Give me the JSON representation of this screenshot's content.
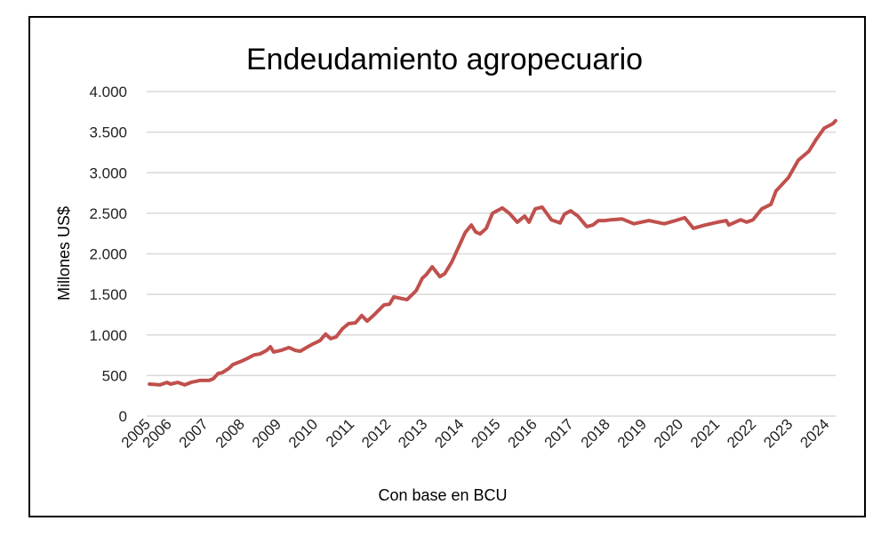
{
  "chart_data": {
    "type": "line",
    "title": "Endeudamiento agropecuario",
    "xlabel": "Con base en BCU",
    "ylabel": "Millones US$",
    "ylim": [
      0,
      4000
    ],
    "y_ticks": [
      0,
      500,
      1000,
      1500,
      2000,
      2500,
      3000,
      3500,
      4000
    ],
    "y_tick_labels": [
      "0",
      "500",
      "1.000",
      "1.500",
      "2.000",
      "2.500",
      "3.000",
      "3.500",
      "4.000"
    ],
    "x_tick_labels": [
      "2005",
      "2006",
      "2007",
      "2008",
      "2009",
      "2010",
      "2011",
      "2012",
      "2013",
      "2014",
      "2015",
      "2016",
      "2017",
      "2018",
      "2019",
      "2020",
      "2021",
      "2022",
      "2023",
      "2024"
    ],
    "grid": true,
    "legend": "none",
    "line_color": "#c0504d",
    "series": [
      {
        "x": [
          2005.42,
          2005.71,
          2005.9,
          2006.0,
          2006.2,
          2006.39,
          2006.56,
          2006.8,
          2007.05,
          2007.17,
          2007.3,
          2007.41,
          2007.6,
          2007.7,
          2007.9,
          2008.1,
          2008.29,
          2008.44,
          2008.63,
          2008.73,
          2008.82,
          2009.02,
          2009.24,
          2009.41,
          2009.55,
          2009.72,
          2009.9,
          2010.09,
          2010.24,
          2010.38,
          2010.53,
          2010.7,
          2010.87,
          2011.06,
          2011.23,
          2011.38,
          2011.55,
          2011.84,
          2011.99,
          2012.11,
          2012.47,
          2012.72,
          2012.89,
          2013.0,
          2013.16,
          2013.37,
          2013.5,
          2013.69,
          2013.86,
          2014.06,
          2014.23,
          2014.35,
          2014.47,
          2014.64,
          2014.81,
          2015.08,
          2015.27,
          2015.49,
          2015.69,
          2015.81,
          2015.98,
          2016.17,
          2016.42,
          2016.66,
          2016.78,
          2016.95,
          2017.15,
          2017.39,
          2017.56,
          2017.71,
          2017.88,
          2018.05,
          2018.36,
          2018.68,
          2019.09,
          2019.51,
          2019.82,
          2020.07,
          2020.31,
          2020.63,
          2020.97,
          2021.21,
          2021.28,
          2021.6,
          2021.77,
          2021.94,
          2022.18,
          2022.43,
          2022.57,
          2022.91,
          2023.18,
          2023.47,
          2023.67,
          2023.89,
          2024.13,
          2024.2
        ],
        "values": [
          395,
          385,
          415,
          395,
          415,
          385,
          415,
          440,
          440,
          460,
          525,
          535,
          590,
          635,
          670,
          710,
          755,
          765,
          810,
          855,
          790,
          810,
          845,
          810,
          800,
          845,
          890,
          930,
          1010,
          955,
          975,
          1075,
          1140,
          1150,
          1240,
          1170,
          1240,
          1370,
          1380,
          1470,
          1435,
          1545,
          1700,
          1745,
          1840,
          1720,
          1755,
          1895,
          2060,
          2260,
          2355,
          2270,
          2245,
          2315,
          2500,
          2565,
          2500,
          2390,
          2465,
          2390,
          2555,
          2575,
          2420,
          2380,
          2490,
          2530,
          2465,
          2335,
          2355,
          2410,
          2410,
          2420,
          2430,
          2370,
          2410,
          2370,
          2410,
          2445,
          2315,
          2355,
          2390,
          2410,
          2355,
          2420,
          2390,
          2420,
          2555,
          2610,
          2775,
          2940,
          3155,
          3265,
          3410,
          3550,
          3605,
          3640
        ]
      }
    ]
  }
}
